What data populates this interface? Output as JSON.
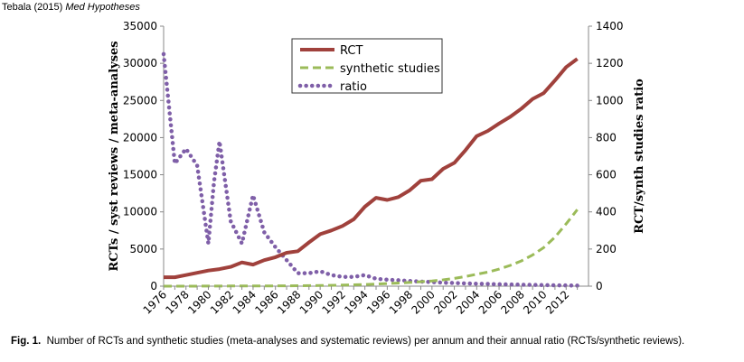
{
  "citation": {
    "authors": "Tebala (2015)",
    "journal": "Med Hypotheses"
  },
  "caption": {
    "label": "Fig. 1.",
    "text": "Number of RCTs and synthetic studies (meta-analyses and systematic reviews) per annum and their annual ratio (RCTs/synthetic reviews)."
  },
  "chart_data": {
    "type": "line",
    "x_ticks": [
      "1976",
      "1978",
      "1980",
      "1982",
      "1984",
      "1986",
      "1988",
      "1990",
      "1992",
      "1994",
      "1996",
      "1998",
      "2000",
      "2002",
      "2004",
      "2006",
      "2008",
      "2010",
      "2012"
    ],
    "ylabel_left": "RCTs / syst reviews / meta-analyses",
    "ylabel_right": "RCT/synth studies ratio",
    "ylim_left": [
      0,
      35000
    ],
    "ylim_right": [
      0,
      1400
    ],
    "y_ticks_left": [
      "0",
      "5000",
      "10000",
      "15000",
      "20000",
      "25000",
      "30000",
      "35000"
    ],
    "y_ticks_right": [
      "0",
      "200",
      "400",
      "600",
      "800",
      "1000",
      "1200",
      "1400"
    ],
    "legend_position": "top-center",
    "colors": {
      "RCT": "#a0413c",
      "synthetic studies": "#9bbb59",
      "ratio": "#7f5fa8"
    },
    "series": [
      {
        "name": "RCT",
        "axis": "left",
        "style": "solid",
        "x": [
          1976,
          1977,
          1978,
          1979,
          1980,
          1981,
          1982,
          1983,
          1984,
          1985,
          1986,
          1987,
          1988,
          1989,
          1990,
          1991,
          1992,
          1993,
          1994,
          1995,
          1996,
          1997,
          1998,
          1999,
          2000,
          2001,
          2002,
          2003,
          2004,
          2005,
          2006,
          2007,
          2008,
          2009,
          2010,
          2011,
          2012,
          2013
        ],
        "values": [
          1200,
          1200,
          1500,
          1800,
          2100,
          2300,
          2600,
          3200,
          2900,
          3500,
          3900,
          4500,
          4700,
          5900,
          7000,
          7500,
          8100,
          9000,
          10700,
          11900,
          11600,
          12000,
          12900,
          14200,
          14400,
          15800,
          16600,
          18300,
          20200,
          20900,
          21900,
          22800,
          23900,
          25200,
          26000,
          27700,
          29500,
          30600
        ]
      },
      {
        "name": "synthetic studies",
        "axis": "left",
        "style": "dashed",
        "x": [
          1976,
          1978,
          1980,
          1982,
          1984,
          1986,
          1988,
          1990,
          1992,
          1994,
          1996,
          1998,
          2000,
          2001,
          2002,
          2003,
          2004,
          2005,
          2006,
          2007,
          2008,
          2009,
          2010,
          2011,
          2012,
          2013
        ],
        "values": [
          2,
          5,
          10,
          20,
          30,
          40,
          60,
          90,
          140,
          220,
          350,
          500,
          700,
          850,
          1050,
          1300,
          1600,
          1900,
          2300,
          2800,
          3400,
          4200,
          5200,
          6600,
          8400,
          10300
        ]
      },
      {
        "name": "ratio",
        "axis": "right",
        "style": "dotted",
        "x": [
          1976,
          1977,
          1978,
          1979,
          1980,
          1980.5,
          1981,
          1982,
          1983,
          1984,
          1985,
          1986,
          1987,
          1988,
          1989,
          1990,
          1991,
          1992,
          1993,
          1994,
          1995,
          1996,
          1997,
          1998,
          1999,
          2000,
          2001,
          2002,
          2003,
          2004,
          2005,
          2006,
          2007,
          2008,
          2009,
          2010,
          2011,
          2012,
          2013
        ],
        "values": [
          1250,
          660,
          740,
          650,
          230,
          560,
          780,
          350,
          230,
          490,
          290,
          210,
          140,
          70,
          70,
          80,
          60,
          50,
          50,
          60,
          40,
          35,
          32,
          28,
          25,
          22,
          19,
          17,
          15,
          13,
          12,
          10,
          9,
          8,
          7,
          6,
          5,
          4,
          3
        ]
      }
    ]
  }
}
